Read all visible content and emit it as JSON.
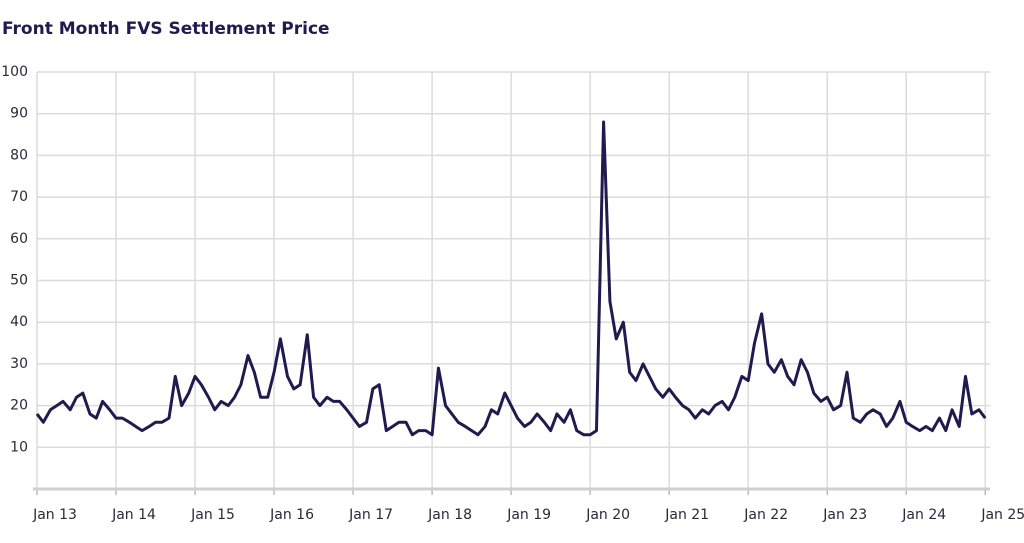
{
  "chart_data": {
    "type": "line",
    "title": "Front Month FVS Settlement Price",
    "x": [
      2013.0,
      2013.08,
      2013.17,
      2013.25,
      2013.33,
      2013.42,
      2013.5,
      2013.58,
      2013.67,
      2013.75,
      2013.83,
      2013.92,
      2014.0,
      2014.08,
      2014.17,
      2014.25,
      2014.33,
      2014.42,
      2014.5,
      2014.58,
      2014.67,
      2014.75,
      2014.83,
      2014.92,
      2015.0,
      2015.08,
      2015.17,
      2015.25,
      2015.33,
      2015.42,
      2015.5,
      2015.58,
      2015.67,
      2015.75,
      2015.83,
      2015.92,
      2016.0,
      2016.08,
      2016.17,
      2016.25,
      2016.33,
      2016.42,
      2016.5,
      2016.58,
      2016.67,
      2016.75,
      2016.83,
      2016.92,
      2017.0,
      2017.08,
      2017.17,
      2017.25,
      2017.33,
      2017.42,
      2017.5,
      2017.58,
      2017.67,
      2017.75,
      2017.83,
      2017.92,
      2018.0,
      2018.08,
      2018.17,
      2018.25,
      2018.33,
      2018.42,
      2018.5,
      2018.58,
      2018.67,
      2018.75,
      2018.83,
      2018.92,
      2019.0,
      2019.08,
      2019.17,
      2019.25,
      2019.33,
      2019.42,
      2019.5,
      2019.58,
      2019.67,
      2019.75,
      2019.83,
      2019.92,
      2020.0,
      2020.08,
      2020.17,
      2020.25,
      2020.33,
      2020.42,
      2020.5,
      2020.58,
      2020.67,
      2020.75,
      2020.83,
      2020.92,
      2021.0,
      2021.08,
      2021.17,
      2021.25,
      2021.33,
      2021.42,
      2021.5,
      2021.58,
      2021.67,
      2021.75,
      2021.83,
      2021.92,
      2022.0,
      2022.08,
      2022.17,
      2022.25,
      2022.33,
      2022.42,
      2022.5,
      2022.58,
      2022.67,
      2022.75,
      2022.83,
      2022.92,
      2023.0,
      2023.08,
      2023.17,
      2023.25,
      2023.33,
      2023.42,
      2023.5,
      2023.58,
      2023.67,
      2023.75,
      2023.83,
      2023.92,
      2024.0,
      2024.08,
      2024.17,
      2024.25,
      2024.33,
      2024.42,
      2024.5,
      2024.58,
      2024.67,
      2024.75,
      2024.83,
      2024.92,
      2025.0
    ],
    "series": [
      {
        "name": "Front Month FVS",
        "color": "#1f1b4f",
        "values": [
          18,
          16,
          19,
          20,
          21,
          19,
          22,
          23,
          18,
          17,
          21,
          19,
          17,
          17,
          16,
          15,
          14,
          15,
          16,
          16,
          17,
          27,
          20,
          23,
          27,
          25,
          22,
          19,
          21,
          20,
          22,
          25,
          32,
          28,
          22,
          22,
          28,
          36,
          27,
          24,
          25,
          37,
          22,
          20,
          22,
          21,
          21,
          19,
          17,
          15,
          16,
          24,
          25,
          14,
          15,
          16,
          16,
          13,
          14,
          14,
          13,
          29,
          20,
          18,
          16,
          15,
          14,
          13,
          15,
          19,
          18,
          23,
          20,
          17,
          15,
          16,
          18,
          16,
          14,
          18,
          16,
          19,
          14,
          13,
          13,
          14,
          88,
          45,
          36,
          40,
          28,
          26,
          30,
          27,
          24,
          22,
          24,
          22,
          20,
          19,
          17,
          19,
          18,
          20,
          21,
          19,
          22,
          27,
          26,
          35,
          42,
          30,
          28,
          31,
          27,
          25,
          31,
          28,
          23,
          21,
          22,
          19,
          20,
          28,
          17,
          16,
          18,
          19,
          18,
          15,
          17,
          21,
          16,
          15,
          14,
          15,
          14,
          17,
          14,
          19,
          15,
          27,
          18,
          19,
          17
        ]
      }
    ],
    "xlim": [
      2013,
      2025.06
    ],
    "xticks": [
      {
        "value": 2013,
        "label": "Jan 13"
      },
      {
        "value": 2014,
        "label": "Jan 14"
      },
      {
        "value": 2015,
        "label": "Jan 15"
      },
      {
        "value": 2016,
        "label": "Jan 16"
      },
      {
        "value": 2017,
        "label": "Jan 17"
      },
      {
        "value": 2018,
        "label": "Jan 18"
      },
      {
        "value": 2019,
        "label": "Jan 19"
      },
      {
        "value": 2020,
        "label": "Jan 20"
      },
      {
        "value": 2021,
        "label": "Jan 21"
      },
      {
        "value": 2022,
        "label": "Jan 22"
      },
      {
        "value": 2023,
        "label": "Jan 23"
      },
      {
        "value": 2024,
        "label": "Jan 24"
      },
      {
        "value": 2025,
        "label": "Jan 25"
      }
    ],
    "ylim": [
      0,
      100
    ],
    "yticks": [
      10,
      20,
      30,
      40,
      50,
      60,
      70,
      80,
      90,
      100
    ],
    "grid": true
  }
}
